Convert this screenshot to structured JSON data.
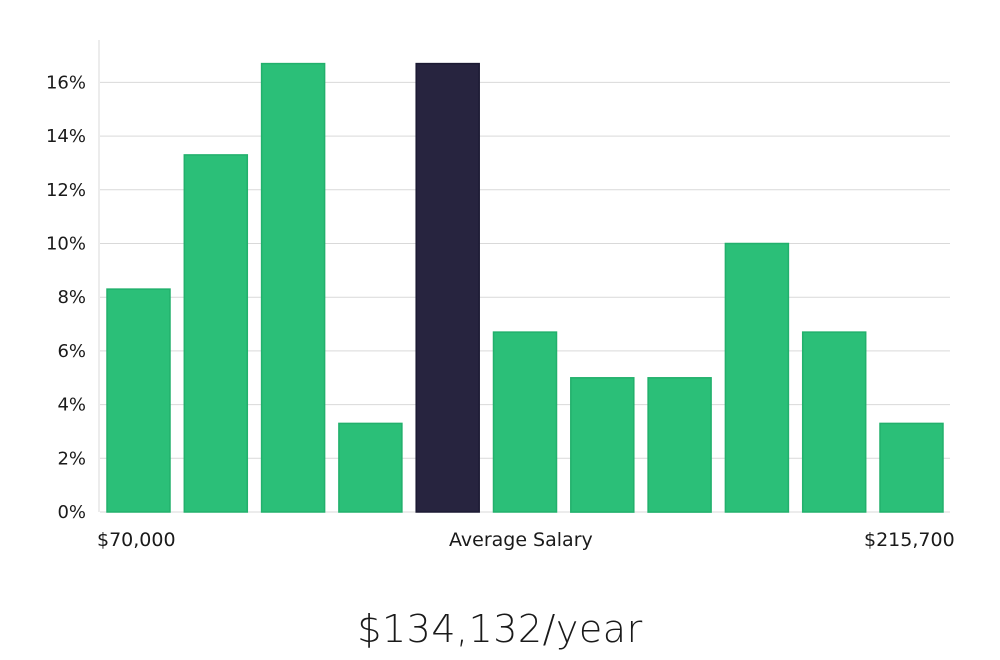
{
  "chart_data": {
    "type": "bar",
    "title": "",
    "xlabel": "Average Salary",
    "ylabel": "",
    "x_range_labels": {
      "min": "$70,000",
      "max": "$215,700"
    },
    "values": [
      8.3,
      13.3,
      16.7,
      3.3,
      16.7,
      6.7,
      5.0,
      5.0,
      10.0,
      6.7,
      3.3
    ],
    "highlight_index": 4,
    "ylim": [
      0,
      17.5
    ],
    "y_ticks": [
      0,
      2,
      4,
      6,
      8,
      10,
      12,
      14,
      16
    ],
    "y_tick_labels": [
      "0%",
      "2%",
      "4%",
      "6%",
      "8%",
      "10%",
      "12%",
      "14%",
      "16%"
    ],
    "grid": true,
    "colors": {
      "bar": "#2bbf78",
      "highlight": "#27243f",
      "grid": "#d9d9d9"
    }
  },
  "summary": {
    "average_salary_text": "$134,132/year"
  }
}
